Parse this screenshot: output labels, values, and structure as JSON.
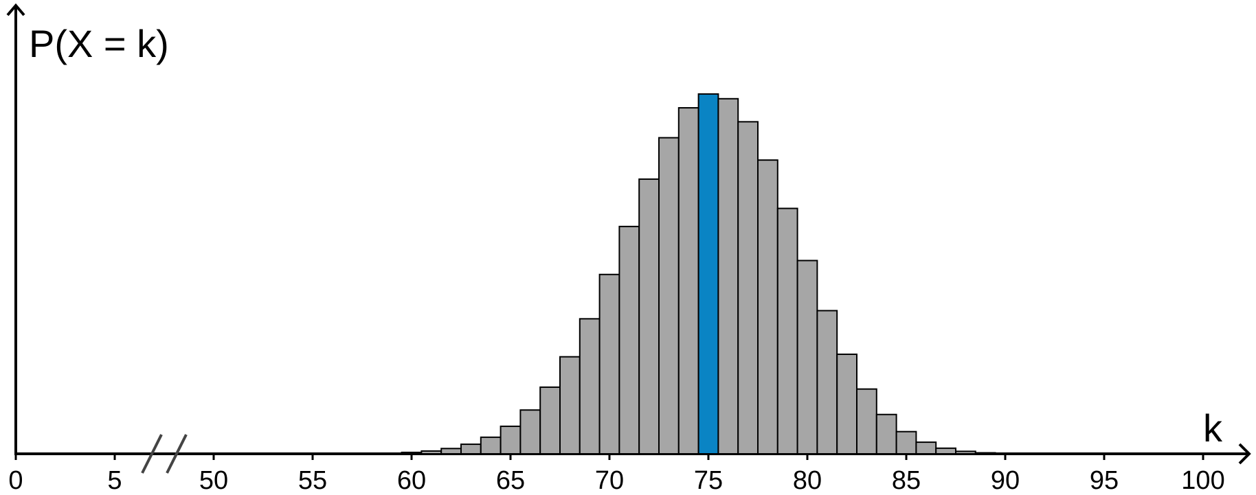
{
  "chart_data": {
    "type": "bar",
    "ylabel": "P(X = k)",
    "xlabel": "k",
    "x": [
      58,
      59,
      60,
      61,
      62,
      63,
      64,
      65,
      66,
      67,
      68,
      69,
      70,
      71,
      72,
      73,
      74,
      75,
      76,
      77,
      78,
      79,
      80,
      81,
      82,
      83,
      84,
      85,
      86,
      87,
      88,
      89,
      90
    ],
    "values": [
      8.29e-05,
      0.000177,
      0.000363,
      0.000714,
      0.00135,
      0.00244,
      0.00423,
      0.00702,
      0.01117,
      0.017,
      0.02475,
      0.03444,
      0.04575,
      0.05799,
      0.07007,
      0.08063,
      0.08826,
      0.09179,
      0.09058,
      0.0847,
      0.07493,
      0.0626,
      0.0493,
      0.03652,
      0.02539,
      0.01652,
      0.01003,
      0.00566,
      0.00296,
      0.00143,
      0.000634,
      0.000256,
      9.4e-05
    ],
    "colors": [
      "#a6a6a6",
      "#a6a6a6",
      "#a6a6a6",
      "#a6a6a6",
      "#a6a6a6",
      "#a6a6a6",
      "#a6a6a6",
      "#a6a6a6",
      "#a6a6a6",
      "#a6a6a6",
      "#a6a6a6",
      "#a6a6a6",
      "#a6a6a6",
      "#a6a6a6",
      "#a6a6a6",
      "#a6a6a6",
      "#a6a6a6",
      "#0a84c4",
      "#a6a6a6",
      "#a6a6a6",
      "#a6a6a6",
      "#a6a6a6",
      "#a6a6a6",
      "#a6a6a6",
      "#a6a6a6",
      "#a6a6a6",
      "#a6a6a6",
      "#a6a6a6",
      "#a6a6a6",
      "#a6a6a6",
      "#a6a6a6",
      "#a6a6a6",
      "#a6a6a6"
    ],
    "xlim": [
      0,
      100
    ],
    "xticks": [
      0,
      5,
      50,
      55,
      60,
      65,
      70,
      75,
      80,
      85,
      90,
      95,
      100
    ],
    "axis_break": [
      5,
      50
    ],
    "ylim": [
      0,
      0.1
    ]
  }
}
